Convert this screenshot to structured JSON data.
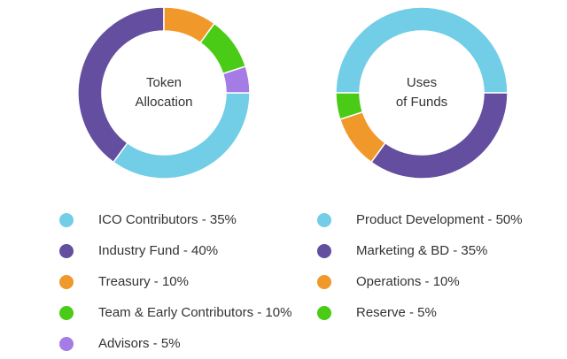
{
  "chart_data": [
    {
      "type": "pie",
      "variant": "donut",
      "title": "Token Allocation",
      "center_label": [
        "Token",
        "Allocation"
      ],
      "categories": [
        "ICO Contributors",
        "Industry Fund",
        "Treasury",
        "Team & Early Contributors",
        "Advisors"
      ],
      "values": [
        35,
        40,
        10,
        10,
        5
      ],
      "colors": [
        "#72CDE6",
        "#644E9F",
        "#F0992A",
        "#4ACB16",
        "#A57BE6"
      ],
      "legend": [
        "ICO Contributors - 35%",
        "Industry Fund - 40%",
        "Treasury - 10%",
        "Team & Early Contributors - 10%",
        "Advisors - 5%"
      ]
    },
    {
      "type": "pie",
      "variant": "donut",
      "title": "Uses of Funds",
      "center_label": [
        "Uses",
        "of Funds"
      ],
      "categories": [
        "Product Development",
        "Marketing & BD",
        "Operations",
        "Reserve"
      ],
      "values": [
        50,
        35,
        10,
        5
      ],
      "colors": [
        "#72CDE6",
        "#644E9F",
        "#F0992A",
        "#4ACB16"
      ],
      "legend": [
        "Product Development - 50%",
        "Marketing & BD - 35%",
        "Operations - 10%",
        "Reserve - 5%"
      ]
    }
  ]
}
